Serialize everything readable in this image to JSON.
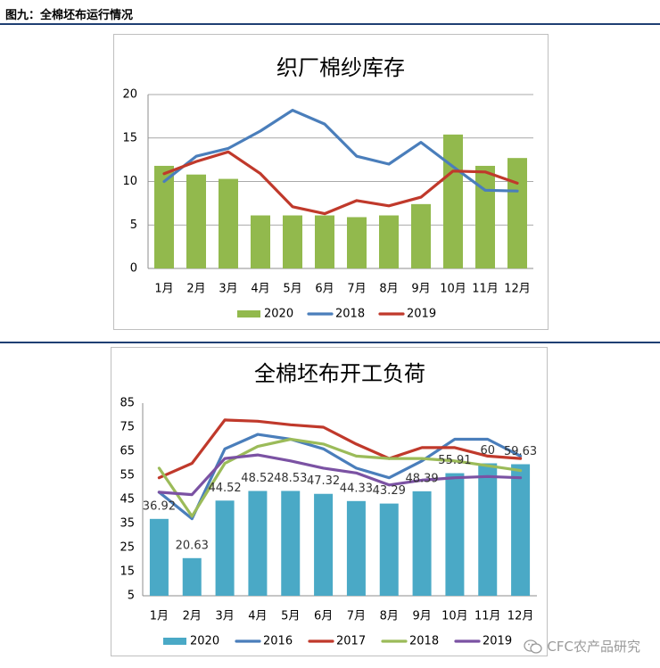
{
  "figure_title": "图九：全棉坯布运行情况",
  "watermark": "CFC农产品研究",
  "colors": {
    "rule": "#1f3f73",
    "2020_chart1": "#92b94d",
    "2020_chart2": "#4aa9c6",
    "2016": "#4a7ebb",
    "2017": "#c0392b",
    "2018_chart1": "#4a7ebb",
    "2018_chart2": "#9bbb59",
    "2019_chart1": "#c0392b",
    "2019_chart2": "#7b52a3"
  },
  "chart_data": [
    {
      "type": "bar+line",
      "title": "织厂棉纱库存",
      "categories": [
        "1月",
        "2月",
        "3月",
        "4月",
        "5月",
        "6月",
        "7月",
        "8月",
        "9月",
        "10月",
        "11月",
        "12月"
      ],
      "ylim": [
        0,
        20
      ],
      "yticks": [
        0,
        5,
        10,
        15,
        20
      ],
      "grid": true,
      "legend_position": "bottom",
      "series": [
        {
          "name": "2020",
          "kind": "bar",
          "color": "#92b94d",
          "values": [
            11.8,
            10.8,
            10.3,
            6.1,
            6.1,
            6.1,
            5.9,
            6.1,
            7.4,
            15.4,
            11.8,
            12.7
          ]
        },
        {
          "name": "2018",
          "kind": "line",
          "color": "#4a7ebb",
          "values": [
            10.0,
            12.9,
            13.8,
            15.8,
            18.2,
            16.6,
            12.9,
            12.0,
            14.5,
            11.7,
            9.0,
            8.9
          ]
        },
        {
          "name": "2019",
          "kind": "line",
          "color": "#c0392b",
          "values": [
            10.9,
            12.3,
            13.4,
            10.9,
            7.1,
            6.3,
            7.8,
            7.2,
            8.2,
            11.2,
            11.1,
            9.8
          ]
        }
      ]
    },
    {
      "type": "bar+line",
      "title": "全棉坯布开工负荷",
      "categories": [
        "1月",
        "2月",
        "3月",
        "4月",
        "5月",
        "6月",
        "7月",
        "8月",
        "9月",
        "10月",
        "11月",
        "12月"
      ],
      "ylim": [
        5,
        85
      ],
      "yticks": [
        5,
        15,
        25,
        35,
        45,
        55,
        65,
        75,
        85
      ],
      "grid": false,
      "legend_position": "bottom",
      "series": [
        {
          "name": "2020",
          "kind": "bar",
          "color": "#4aa9c6",
          "values": [
            36.92,
            20.63,
            44.52,
            48.52,
            48.53,
            47.32,
            44.33,
            43.29,
            48.39,
            55.91,
            60,
            59.63
          ],
          "labels": [
            "36.92",
            "20.63",
            "44.52",
            "48.52",
            "48.53",
            "47.32",
            "44.33",
            "43.29",
            "48.39",
            "55.91",
            "60",
            "59.63"
          ]
        },
        {
          "name": "2016",
          "kind": "line",
          "color": "#4a7ebb",
          "values": [
            48,
            37,
            66,
            72,
            70,
            66,
            58,
            54,
            61,
            70,
            70,
            63
          ]
        },
        {
          "name": "2017",
          "kind": "line",
          "color": "#c0392b",
          "values": [
            54,
            60,
            78,
            77.5,
            76,
            75,
            68,
            62,
            66.5,
            66.5,
            63,
            62
          ]
        },
        {
          "name": "2018",
          "kind": "line",
          "color": "#9bbb59",
          "values": [
            58,
            38,
            60,
            67,
            70,
            68,
            63,
            62,
            62,
            61,
            59,
            57
          ]
        },
        {
          "name": "2019",
          "kind": "line",
          "color": "#7b52a3",
          "values": [
            48,
            47,
            62,
            63.5,
            61,
            58,
            56,
            51,
            53,
            54,
            54.5,
            54
          ]
        }
      ]
    }
  ]
}
